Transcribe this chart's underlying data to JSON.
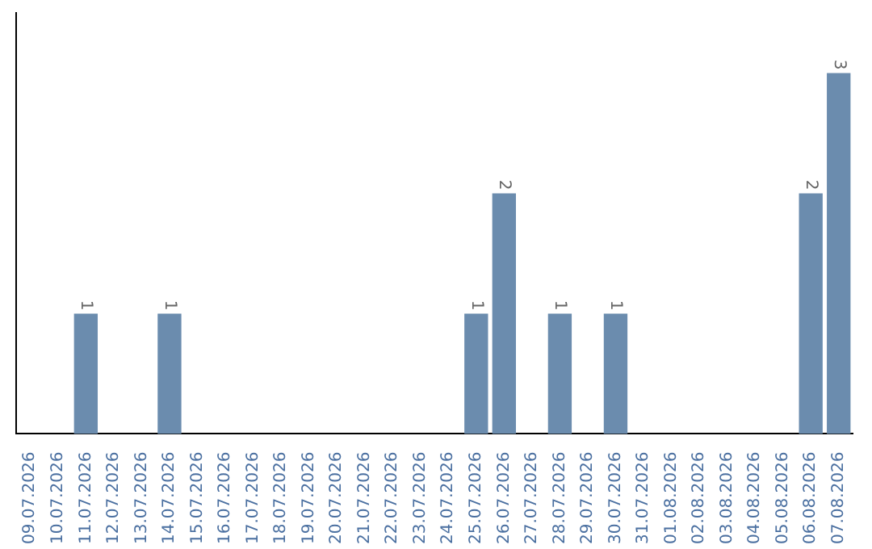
{
  "chart_data": {
    "type": "bar",
    "categories": [
      "09.07.2026",
      "10.07.2026",
      "11.07.2026",
      "12.07.2026",
      "13.07.2026",
      "14.07.2026",
      "15.07.2026",
      "16.07.2026",
      "17.07.2026",
      "18.07.2026",
      "19.07.2026",
      "20.07.2026",
      "21.07.2026",
      "22.07.2026",
      "23.07.2026",
      "24.07.2026",
      "25.07.2026",
      "26.07.2026",
      "27.07.2026",
      "28.07.2026",
      "29.07.2026",
      "30.07.2026",
      "31.07.2026",
      "01.08.2026",
      "02.08.2026",
      "03.08.2026",
      "04.08.2026",
      "05.08.2026",
      "06.08.2026",
      "07.08.2026"
    ],
    "values": [
      0,
      0,
      1,
      0,
      0,
      1,
      0,
      0,
      0,
      0,
      0,
      0,
      0,
      0,
      0,
      0,
      1,
      2,
      0,
      1,
      0,
      1,
      0,
      0,
      0,
      0,
      0,
      0,
      2,
      3
    ],
    "value_labels": [
      null,
      null,
      "1",
      null,
      null,
      "1",
      null,
      null,
      null,
      null,
      null,
      null,
      null,
      null,
      null,
      null,
      "1",
      "2",
      null,
      "1",
      null,
      "1",
      null,
      null,
      null,
      null,
      null,
      null,
      "2",
      "3"
    ],
    "color": "#6b8cae",
    "grid": false,
    "legend": false
  }
}
